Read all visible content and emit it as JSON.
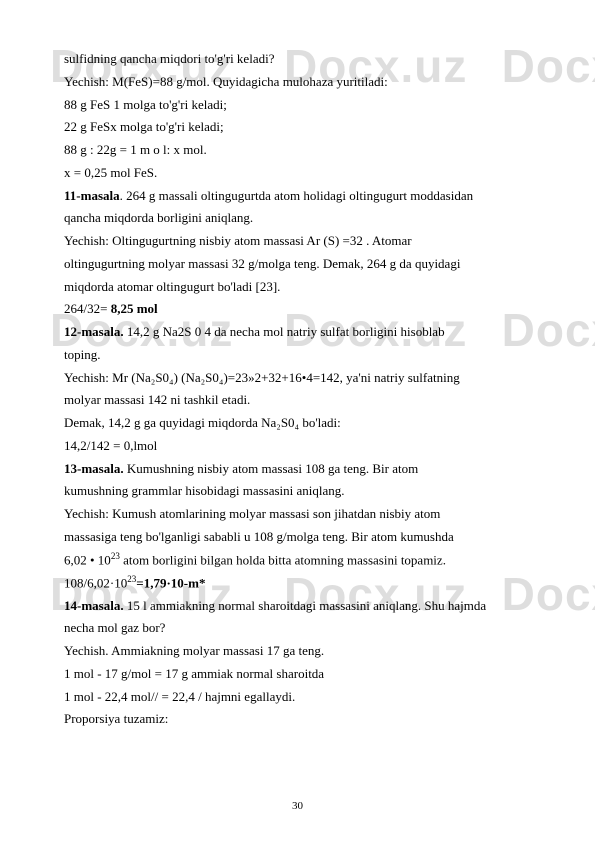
{
  "watermark": "Docx.uz",
  "lines": {
    "l1": "sulfidning qancha miqdori to'g'ri keladi?",
    "l2": "Yechish: M(FeS)=88 g/mol. Quyidagicha mulohaza yuritiladi:",
    "l3": "88 g FeS 1 molga to'g'ri keladi;",
    "l4": "22 g FeSx molga to'g'ri keladi;",
    "l5": "88 g : 22g = 1 m o l: x mol.",
    "l6": "x = 0,25 mol FeS.",
    "l7a": "11-masala",
    "l7b": ". 264 g massali oltingugurtda atom holidagi oltingugurt moddasidan",
    "l8": "qancha miqdorda borligini aniqlang.",
    "l9": "Yechish: Oltingugurtning nisbiy atom massasi Ar (S) =32 . Atomar",
    "l10": "oltingugurtning molyar massasi 32 g/molga teng. Demak, 264 g da quyidagi",
    "l11": "miqdorda atomar oltingugurt bo'ladi [23].",
    "l12a": "264/32=",
    "l12b": " 8,25 mol",
    "l13a": "12-masala.",
    "l13b": " 14,2 g Na2S 0 4 da necha mol natriy sulfat borligini hisoblab",
    "l14": "toping.",
    "l15": "Yechish: Mr (Na₂S0₄) (Na₂S0₄)=23»2+32+16•4=142, ya'ni natriy sulfatning",
    "l16": "molyar massasi 142 ni tashkil etadi.",
    "l17": "Demak, 14,2 g ga quyidagi miqdorda Na₂S0₄ bo'ladi:",
    "l18": "14,2/142 = 0,lmol",
    "l19a": "13-masala.",
    "l19b": " Kumushning nisbiy atom massasi 108 ga teng. Bir atom",
    "l20": "kumushning grammlar hisobidagi massasini aniqlang.",
    "l21": "Yechish: Kumush atomlarining molyar massasi son jihatdan nisbiy atom",
    "l22": "massasiga teng bo'lganligi sababli u 108 g/molga teng. Bir atom kumushda",
    "l23a": "6,02 • 10",
    "l23sup": "23",
    "l23b": " atom borligini bilgan holda bitta atomning massasini topamiz.",
    "l24a": "108/6,02·10",
    "l24sup": "23",
    "l24b": "=1,79·10-m*",
    "l25a": "14-masala.",
    "l25b": " 15 l ammiakning normal sharoitdagi massasini aniqlang. Shu hajmda",
    "l26": "necha mol gaz bor?",
    "l27": "Yechish. Ammiakning molyar massasi 17 ga teng.",
    "l28": "1 mol - 17 g/mol = 17 g ammiak normal sharoitda",
    "l29": "1 mol - 22,4 mol// = 22,4 / hajmni egallaydi.",
    "l30": "Proporsiya tuzamiz:"
  },
  "page_number": "30"
}
